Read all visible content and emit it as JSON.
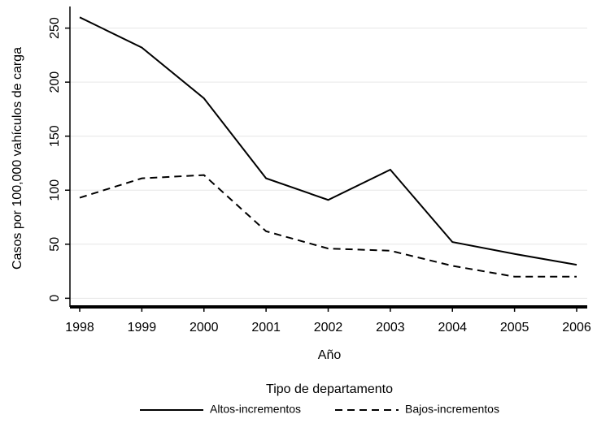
{
  "chart_data": {
    "type": "line",
    "x_label": "Año",
    "y_label": "Casos por 100,000 vahículos de carga",
    "x": [
      1998,
      1999,
      2000,
      2001,
      2002,
      2003,
      2004,
      2005,
      2006
    ],
    "series": [
      {
        "name": "Altos-incrementos",
        "color": "#000000",
        "dash": "solid",
        "values": [
          260,
          232,
          185,
          111,
          91,
          119,
          52,
          41,
          31
        ]
      },
      {
        "name": "Bajos-incrementos",
        "color": "#000000",
        "dash": "dashed",
        "values": [
          93,
          111,
          114,
          62,
          46,
          44,
          30,
          20,
          20
        ]
      }
    ],
    "xlim": [
      1998,
      2006
    ],
    "xticks": [
      1998,
      1999,
      2000,
      2001,
      2002,
      2003,
      2004,
      2005,
      2006
    ],
    "ylim": [
      -8,
      270
    ],
    "yticks": [
      0,
      50,
      100,
      150,
      200,
      250
    ],
    "grid": true,
    "legend_title": "Tipo de departamento",
    "legend_position": "bottom"
  }
}
